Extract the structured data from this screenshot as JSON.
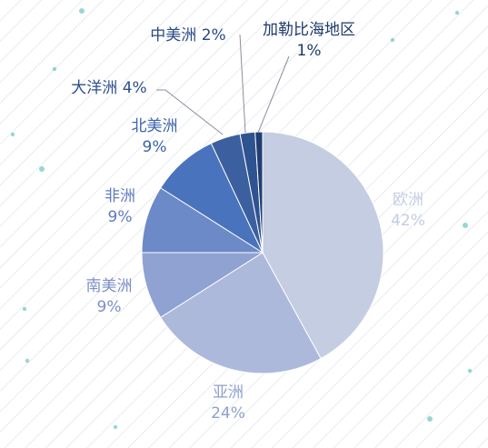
{
  "chart_data": {
    "type": "pie",
    "title": "",
    "start_angle_deg": 0,
    "direction": "clockwise",
    "slices": [
      {
        "name": "欧洲",
        "value": 42,
        "pct_label": "42%",
        "color": "#c5cde3",
        "label_color": "#c5cde3"
      },
      {
        "name": "亚洲",
        "value": 24,
        "pct_label": "24%",
        "color": "#adb9db",
        "label_color": "#8fa1cd"
      },
      {
        "name": "南美洲",
        "value": 9,
        "pct_label": "9%",
        "color": "#8fa2d2",
        "label_color": "#7d90c7"
      },
      {
        "name": "非洲",
        "value": 9,
        "pct_label": "9%",
        "color": "#6c89c8",
        "label_color": "#5f7bc0"
      },
      {
        "name": "北美洲",
        "value": 9,
        "pct_label": "9%",
        "color": "#4a73bd",
        "label_color": "#3c63ad"
      },
      {
        "name": "大洋洲",
        "value": 4,
        "pct_label": "4%",
        "color": "#3c5f9f",
        "label_color": "#2f4f8f"
      },
      {
        "name": "中美洲",
        "value": 2,
        "pct_label": "2%",
        "color": "#2f5290",
        "label_color": "#2a4a85"
      },
      {
        "name": "加勒比海地区",
        "value": 1,
        "pct_label": "1%",
        "color": "#203e72",
        "label_color": "#1f3a6b"
      }
    ],
    "legend": "none",
    "background": {
      "pattern": "diagonal-stripes",
      "stripe_color": "#d9dde4",
      "dot_color": "#3fb6b1"
    }
  }
}
